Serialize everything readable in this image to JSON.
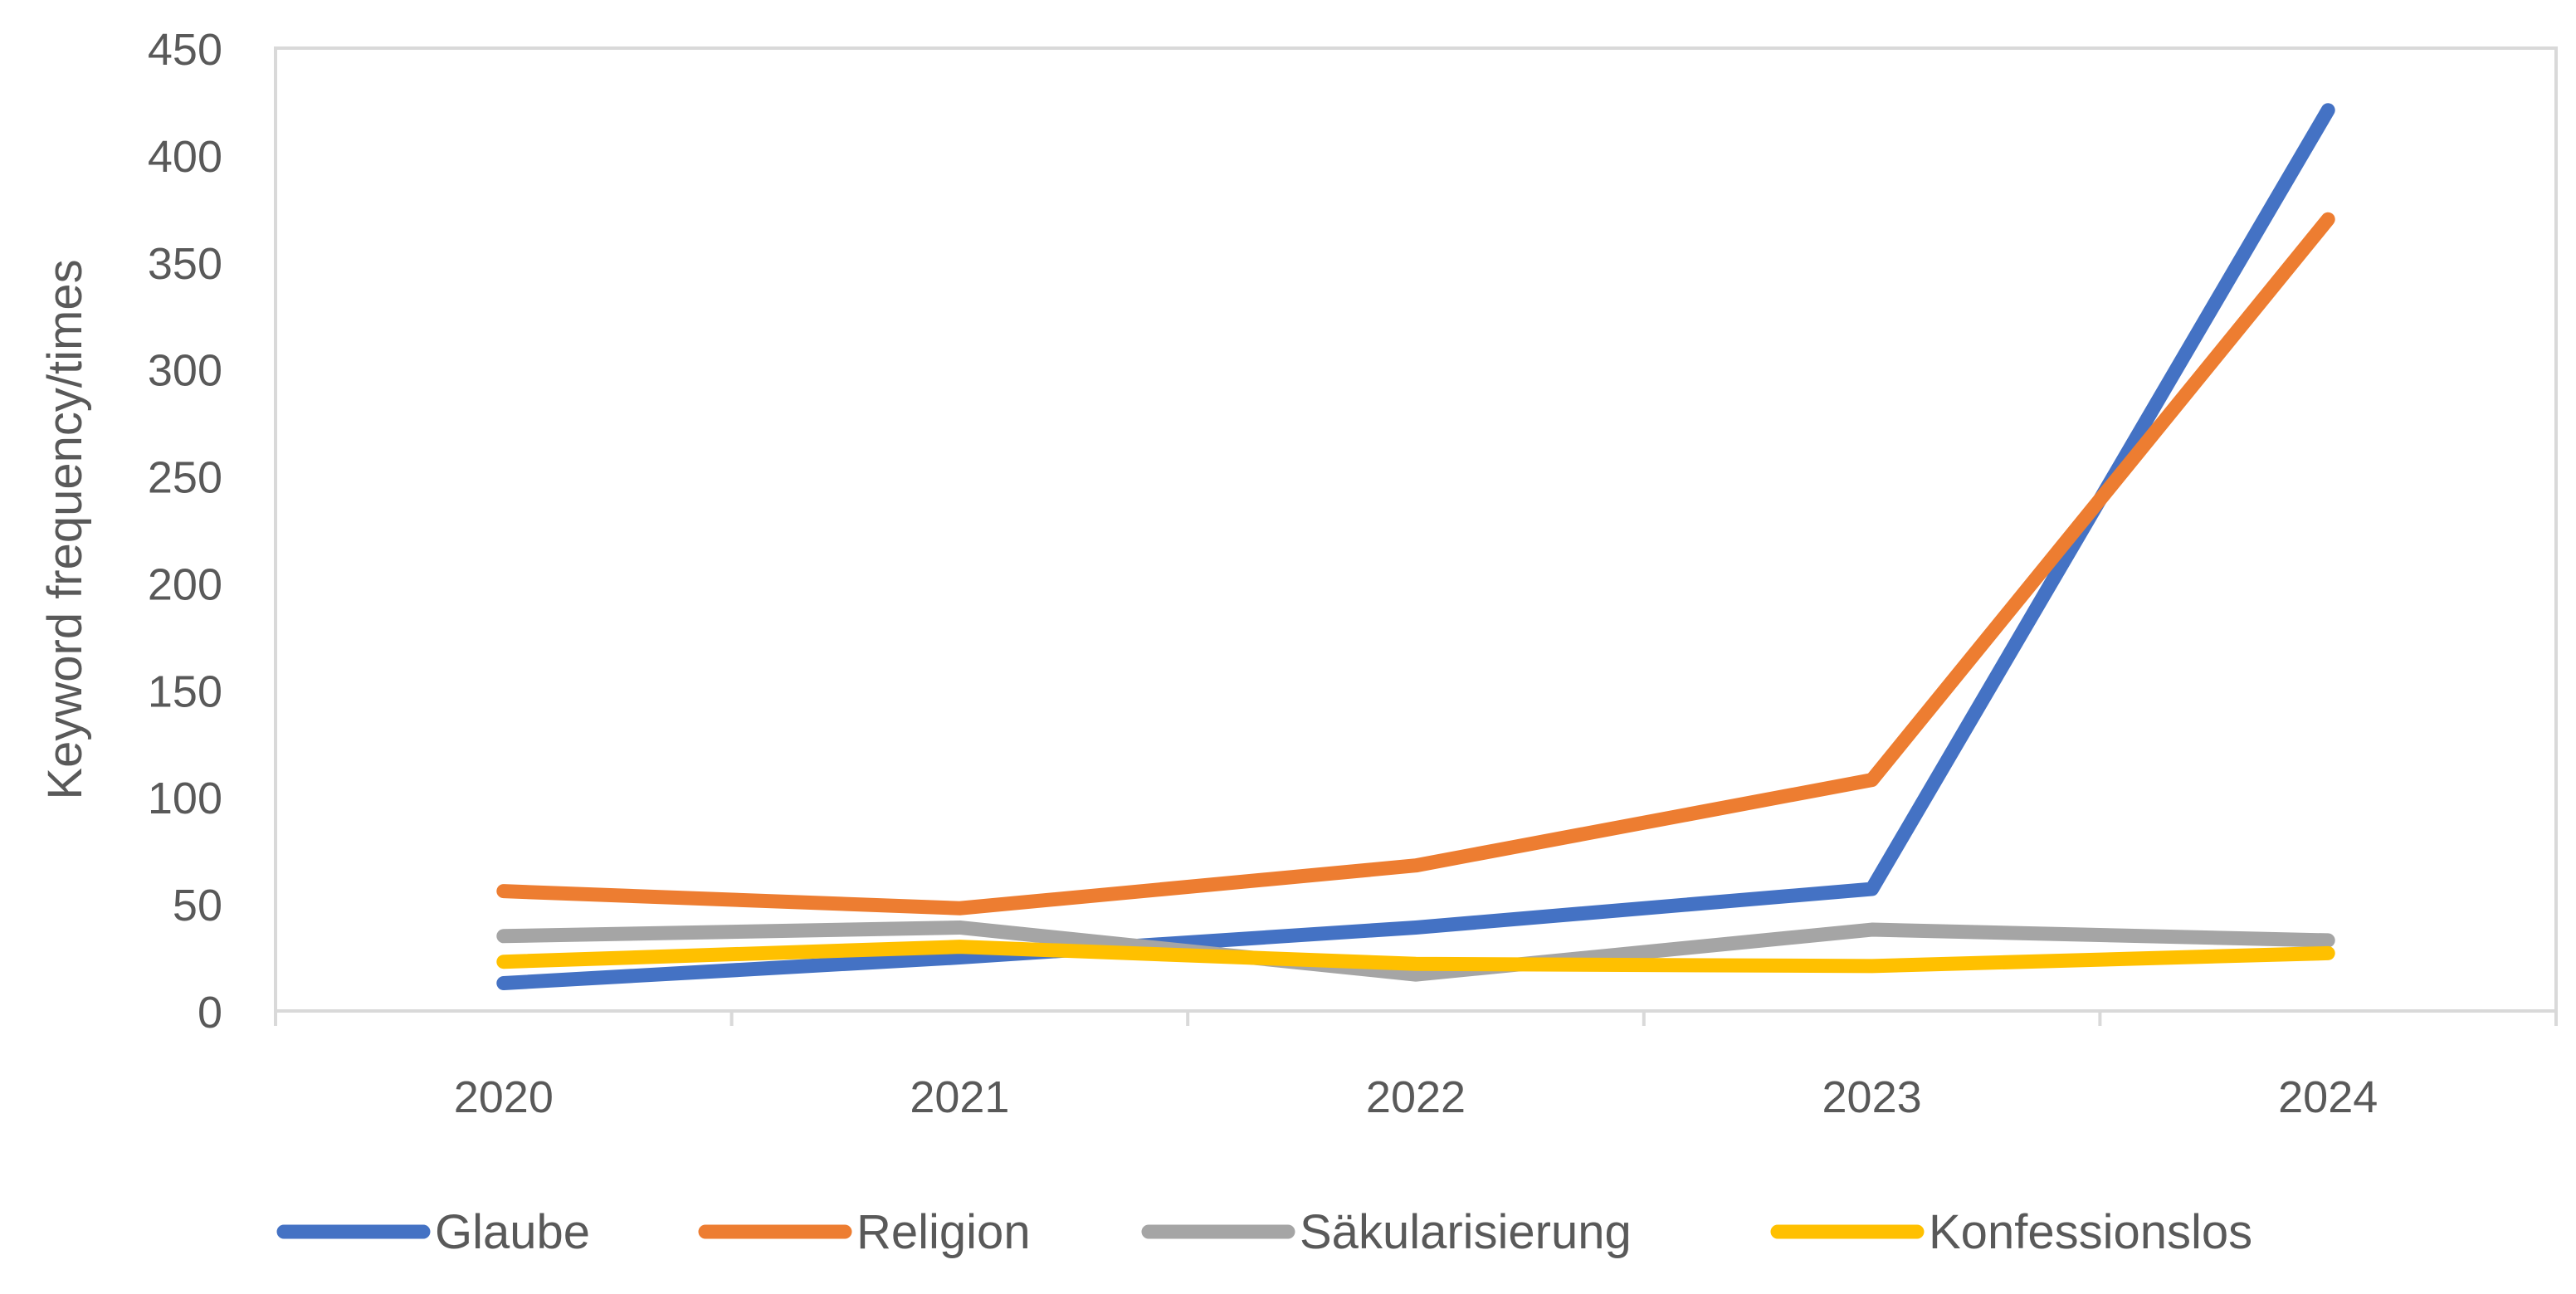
{
  "chart_data": {
    "type": "line",
    "title": "",
    "xlabel": "",
    "ylabel": "Keyword frequency/times",
    "categories": [
      "2020",
      "2021",
      "2022",
      "2023",
      "2024"
    ],
    "ylim": [
      0,
      450
    ],
    "yticks": [
      0,
      50,
      100,
      150,
      200,
      250,
      300,
      350,
      400,
      450
    ],
    "grid": false,
    "legend_position": "bottom",
    "series": [
      {
        "name": "Glaube",
        "color": "#4472C4",
        "values": [
          13,
          25,
          39,
          57,
          421
        ]
      },
      {
        "name": "Religion",
        "color": "#ED7D31",
        "values": [
          56,
          48,
          68,
          108,
          370
        ]
      },
      {
        "name": "Säkularisierung",
        "color": "#A5A5A5",
        "values": [
          35,
          39,
          17,
          38,
          33
        ]
      },
      {
        "name": "Konfessionslos",
        "color": "#FFC000",
        "values": [
          23,
          30,
          22,
          21,
          27
        ]
      }
    ]
  }
}
